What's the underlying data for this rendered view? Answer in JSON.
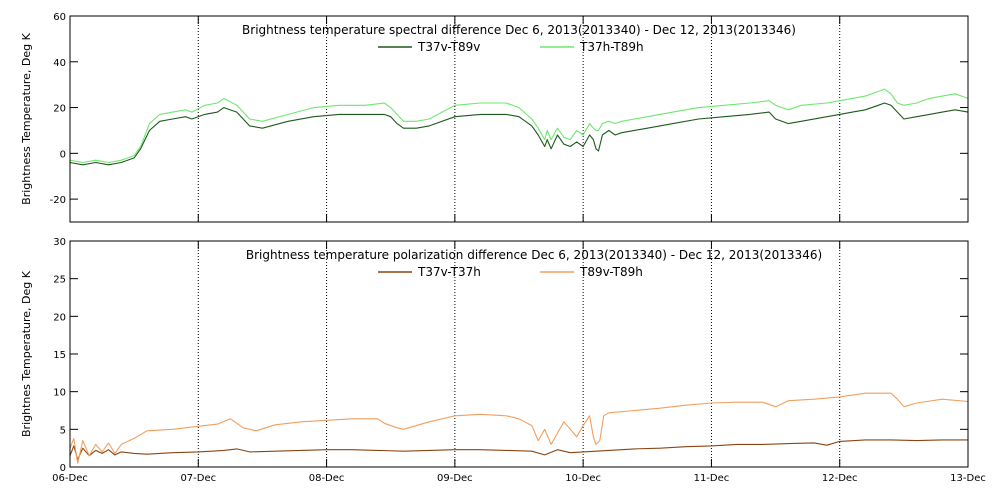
{
  "chart_data": [
    {
      "type": "line",
      "title": "Brightness temperature spectral difference    Dec  6, 2013(2013340) - Dec 12, 2013(2013346)",
      "ylabel": "Brightness Temperature, Deg K",
      "xlim": [
        6,
        13
      ],
      "ylim": [
        -30,
        60
      ],
      "yticks": [
        -20,
        0,
        20,
        40,
        60
      ],
      "xticks": [
        6,
        7,
        8,
        9,
        10,
        11,
        12,
        13
      ],
      "xticklabels": [
        "06-Dec",
        "07-Dec",
        "08-Dec",
        "09-Dec",
        "10-Dec",
        "11-Dec",
        "12-Dec",
        "13-Dec"
      ],
      "grid": "vertical-dotted",
      "legend_position": "top-center",
      "series": [
        {
          "name": "T37v-T89v",
          "color": "#1d5a1d",
          "x": [
            6.0,
            6.1,
            6.2,
            6.3,
            6.4,
            6.5,
            6.55,
            6.62,
            6.7,
            6.8,
            6.9,
            6.95,
            7.05,
            7.15,
            7.2,
            7.3,
            7.4,
            7.5,
            7.7,
            7.9,
            8.1,
            8.3,
            8.45,
            8.5,
            8.55,
            8.6,
            8.7,
            8.8,
            9.0,
            9.2,
            9.4,
            9.5,
            9.6,
            9.65,
            9.7,
            9.72,
            9.75,
            9.8,
            9.85,
            9.9,
            9.95,
            10.0,
            10.05,
            10.08,
            10.1,
            10.12,
            10.15,
            10.2,
            10.25,
            10.3,
            10.4,
            10.5,
            10.7,
            10.9,
            11.1,
            11.3,
            11.45,
            11.5,
            11.6,
            11.7,
            11.9,
            12.0,
            12.1,
            12.2,
            12.3,
            12.35,
            12.4,
            12.45,
            12.5,
            12.6,
            12.7,
            12.8,
            12.9,
            13.0
          ],
          "y": [
            -4,
            -5,
            -4,
            -5,
            -4,
            -2,
            2,
            10,
            14,
            15,
            16,
            15,
            17,
            18,
            20,
            18,
            12,
            11,
            14,
            16,
            17,
            17,
            17,
            16,
            13,
            11,
            11,
            12,
            16,
            17,
            17,
            16,
            12,
            8,
            3,
            6,
            2,
            8,
            4,
            3,
            5,
            3,
            8,
            6,
            2,
            1,
            8,
            10,
            8,
            9,
            10,
            11,
            13,
            15,
            16,
            17,
            18,
            15,
            13,
            14,
            16,
            17,
            18,
            19,
            21,
            22,
            21,
            18,
            15,
            16,
            17,
            18,
            19,
            18
          ]
        },
        {
          "name": "T37h-T89h",
          "color": "#6ee86e",
          "x": [
            6.0,
            6.1,
            6.2,
            6.3,
            6.4,
            6.5,
            6.55,
            6.62,
            6.7,
            6.8,
            6.9,
            6.95,
            7.05,
            7.15,
            7.2,
            7.3,
            7.4,
            7.5,
            7.7,
            7.9,
            8.1,
            8.3,
            8.45,
            8.5,
            8.55,
            8.6,
            8.7,
            8.8,
            9.0,
            9.2,
            9.4,
            9.5,
            9.6,
            9.65,
            9.7,
            9.72,
            9.75,
            9.8,
            9.85,
            9.9,
            9.95,
            10.0,
            10.05,
            10.08,
            10.1,
            10.12,
            10.15,
            10.2,
            10.25,
            10.3,
            10.4,
            10.5,
            10.7,
            10.9,
            11.1,
            11.3,
            11.45,
            11.5,
            11.6,
            11.7,
            11.9,
            12.0,
            12.1,
            12.2,
            12.3,
            12.35,
            12.4,
            12.45,
            12.5,
            12.6,
            12.7,
            12.8,
            12.9,
            13.0
          ],
          "y": [
            -3,
            -4,
            -3,
            -4,
            -3,
            -1,
            3,
            13,
            17,
            18,
            19,
            18,
            21,
            22,
            24,
            21,
            15,
            14,
            17,
            20,
            21,
            21,
            22,
            20,
            17,
            14,
            14,
            15,
            21,
            22,
            22,
            20,
            15,
            11,
            6,
            10,
            6,
            11,
            7,
            6,
            10,
            8,
            13,
            11,
            10,
            10,
            13,
            14,
            13,
            14,
            15,
            16,
            18,
            20,
            21,
            22,
            23,
            21,
            19,
            21,
            22,
            23,
            24,
            25,
            27,
            28,
            26,
            22,
            21,
            22,
            24,
            25,
            26,
            24
          ]
        }
      ]
    },
    {
      "type": "line",
      "title": "Brightness temperature polarization difference    Dec  6, 2013(2013340) - Dec 12, 2013(2013346)",
      "ylabel": "Brightnes Temperature, Deg K",
      "xlim": [
        6,
        13
      ],
      "ylim": [
        0,
        30
      ],
      "yticks": [
        0,
        5,
        10,
        15,
        20,
        25,
        30
      ],
      "xticks": [
        6,
        7,
        8,
        9,
        10,
        11,
        12,
        13
      ],
      "xticklabels": [
        "06-Dec",
        "07-Dec",
        "08-Dec",
        "09-Dec",
        "10-Dec",
        "11-Dec",
        "12-Dec",
        "13-Dec"
      ],
      "grid": "vertical-dotted",
      "legend_position": "top-center",
      "series": [
        {
          "name": "T37v-T37h",
          "color": "#8b4513",
          "x": [
            6.0,
            6.03,
            6.06,
            6.1,
            6.15,
            6.2,
            6.25,
            6.3,
            6.35,
            6.4,
            6.5,
            6.6,
            6.8,
            7.0,
            7.2,
            7.3,
            7.4,
            7.6,
            7.8,
            8.0,
            8.2,
            8.4,
            8.6,
            8.8,
            9.0,
            9.2,
            9.4,
            9.6,
            9.7,
            9.8,
            9.9,
            10.0,
            10.1,
            10.2,
            10.4,
            10.6,
            10.8,
            11.0,
            11.2,
            11.4,
            11.6,
            11.8,
            11.9,
            12.0,
            12.2,
            12.4,
            12.6,
            12.8,
            13.0
          ],
          "y": [
            1.5,
            2.8,
            1.0,
            2.5,
            1.5,
            2.2,
            1.8,
            2.3,
            1.6,
            2.0,
            1.8,
            1.7,
            1.9,
            2.0,
            2.2,
            2.4,
            2.0,
            2.1,
            2.2,
            2.3,
            2.3,
            2.2,
            2.1,
            2.2,
            2.3,
            2.3,
            2.2,
            2.1,
            1.6,
            2.3,
            1.9,
            2.0,
            2.1,
            2.2,
            2.4,
            2.5,
            2.7,
            2.8,
            3.0,
            3.0,
            3.1,
            3.2,
            2.9,
            3.4,
            3.6,
            3.6,
            3.5,
            3.6,
            3.6
          ]
        },
        {
          "name": "T89v-T89h",
          "color": "#f0a060",
          "x": [
            6.0,
            6.03,
            6.06,
            6.1,
            6.15,
            6.2,
            6.25,
            6.3,
            6.35,
            6.4,
            6.5,
            6.6,
            6.8,
            7.0,
            7.15,
            7.25,
            7.35,
            7.45,
            7.6,
            7.8,
            8.0,
            8.2,
            8.4,
            8.45,
            8.55,
            8.6,
            8.8,
            9.0,
            9.2,
            9.4,
            9.5,
            9.6,
            9.65,
            9.7,
            9.75,
            9.8,
            9.85,
            9.9,
            9.95,
            10.0,
            10.05,
            10.08,
            10.1,
            10.13,
            10.16,
            10.2,
            10.4,
            10.6,
            10.8,
            11.0,
            11.2,
            11.4,
            11.5,
            11.6,
            11.8,
            12.0,
            12.2,
            12.4,
            12.45,
            12.5,
            12.6,
            12.8,
            13.0
          ],
          "y": [
            2.5,
            3.8,
            0.5,
            3.5,
            1.5,
            3.0,
            2.0,
            3.2,
            1.8,
            3.0,
            3.8,
            4.8,
            5.0,
            5.4,
            5.7,
            6.4,
            5.2,
            4.8,
            5.6,
            6.0,
            6.2,
            6.4,
            6.4,
            5.8,
            5.2,
            5.0,
            6.0,
            6.8,
            7.0,
            6.8,
            6.4,
            5.5,
            3.5,
            5.0,
            3.0,
            4.5,
            6.0,
            5.0,
            4.0,
            5.5,
            6.8,
            4.0,
            3.0,
            3.5,
            6.8,
            7.2,
            7.5,
            7.8,
            8.2,
            8.5,
            8.6,
            8.6,
            8.0,
            8.8,
            9.0,
            9.3,
            9.8,
            9.8,
            9.0,
            8.0,
            8.5,
            9.0,
            8.7
          ]
        }
      ]
    }
  ]
}
